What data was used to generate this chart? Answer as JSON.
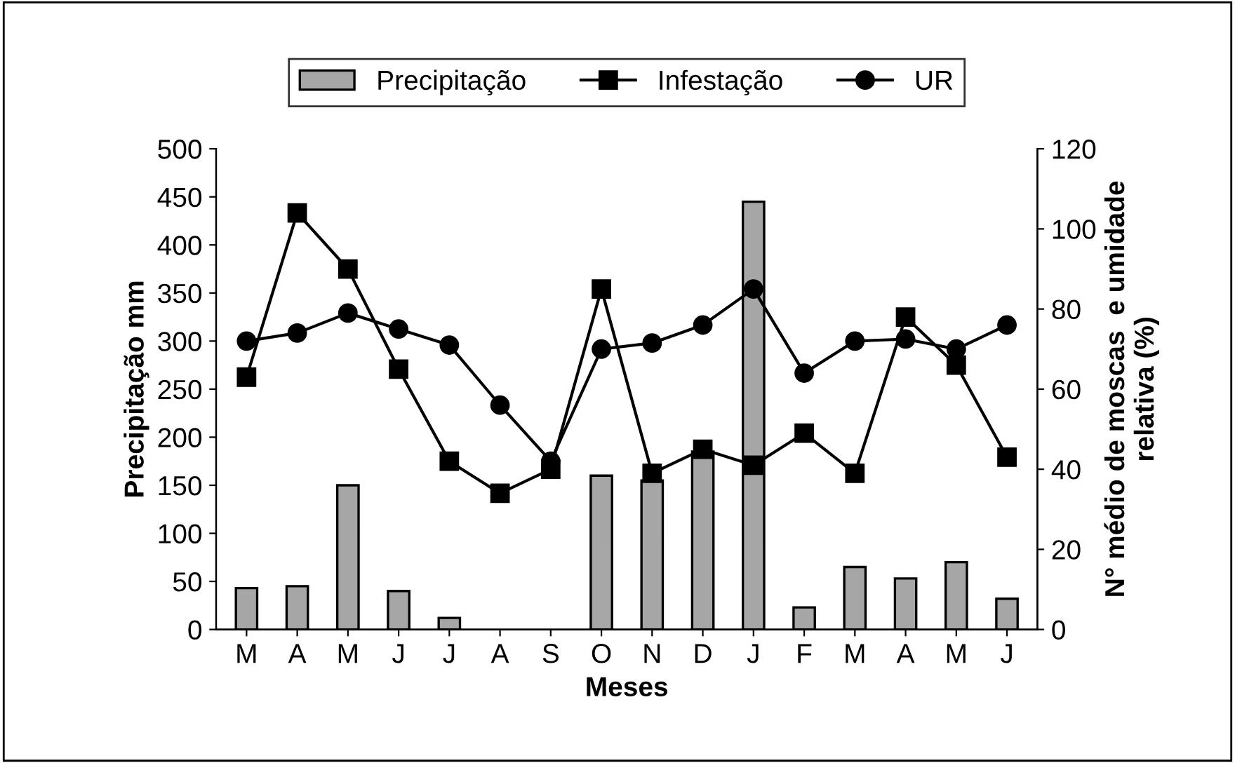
{
  "chart_data": {
    "type": "bar",
    "xlabel": "Meses",
    "ylabel": "Precipitação mm",
    "y2label": "N° médio de moscas  e umidade\nrelativa (%)",
    "categories": [
      "M",
      "A",
      "M",
      "J",
      "J",
      "A",
      "S",
      "O",
      "N",
      "D",
      "J",
      "F",
      "M",
      "A",
      "M",
      "J"
    ],
    "series": [
      {
        "name": "Precipitação",
        "color": "#a6a6a6",
        "values": [
          43,
          45,
          150,
          40,
          12,
          0,
          0,
          160,
          155,
          185,
          445,
          23,
          65,
          53,
          70,
          32
        ]
      },
      {
        "name": "Infestação",
        "type": "line",
        "axis": "y2",
        "marker": "square",
        "color": "#000000",
        "values": [
          63,
          104,
          90,
          65,
          42,
          34,
          40,
          85,
          39,
          45,
          41,
          49,
          39,
          78,
          66,
          43
        ]
      },
      {
        "name": "UR",
        "type": "line",
        "axis": "y2",
        "marker": "circle",
        "color": "#000000",
        "values": [
          72,
          74,
          79,
          75,
          71,
          56,
          42,
          70,
          71.5,
          76,
          85,
          64,
          72,
          72.5,
          70,
          76
        ]
      }
    ],
    "ylim": [
      0,
      500
    ],
    "yticks": [
      0,
      50,
      100,
      150,
      200,
      250,
      300,
      350,
      400,
      450,
      500
    ],
    "y2lim": [
      0,
      120
    ],
    "y2ticks": [
      0,
      20,
      40,
      60,
      80,
      100,
      120
    ],
    "grid": false,
    "legend": "top"
  }
}
